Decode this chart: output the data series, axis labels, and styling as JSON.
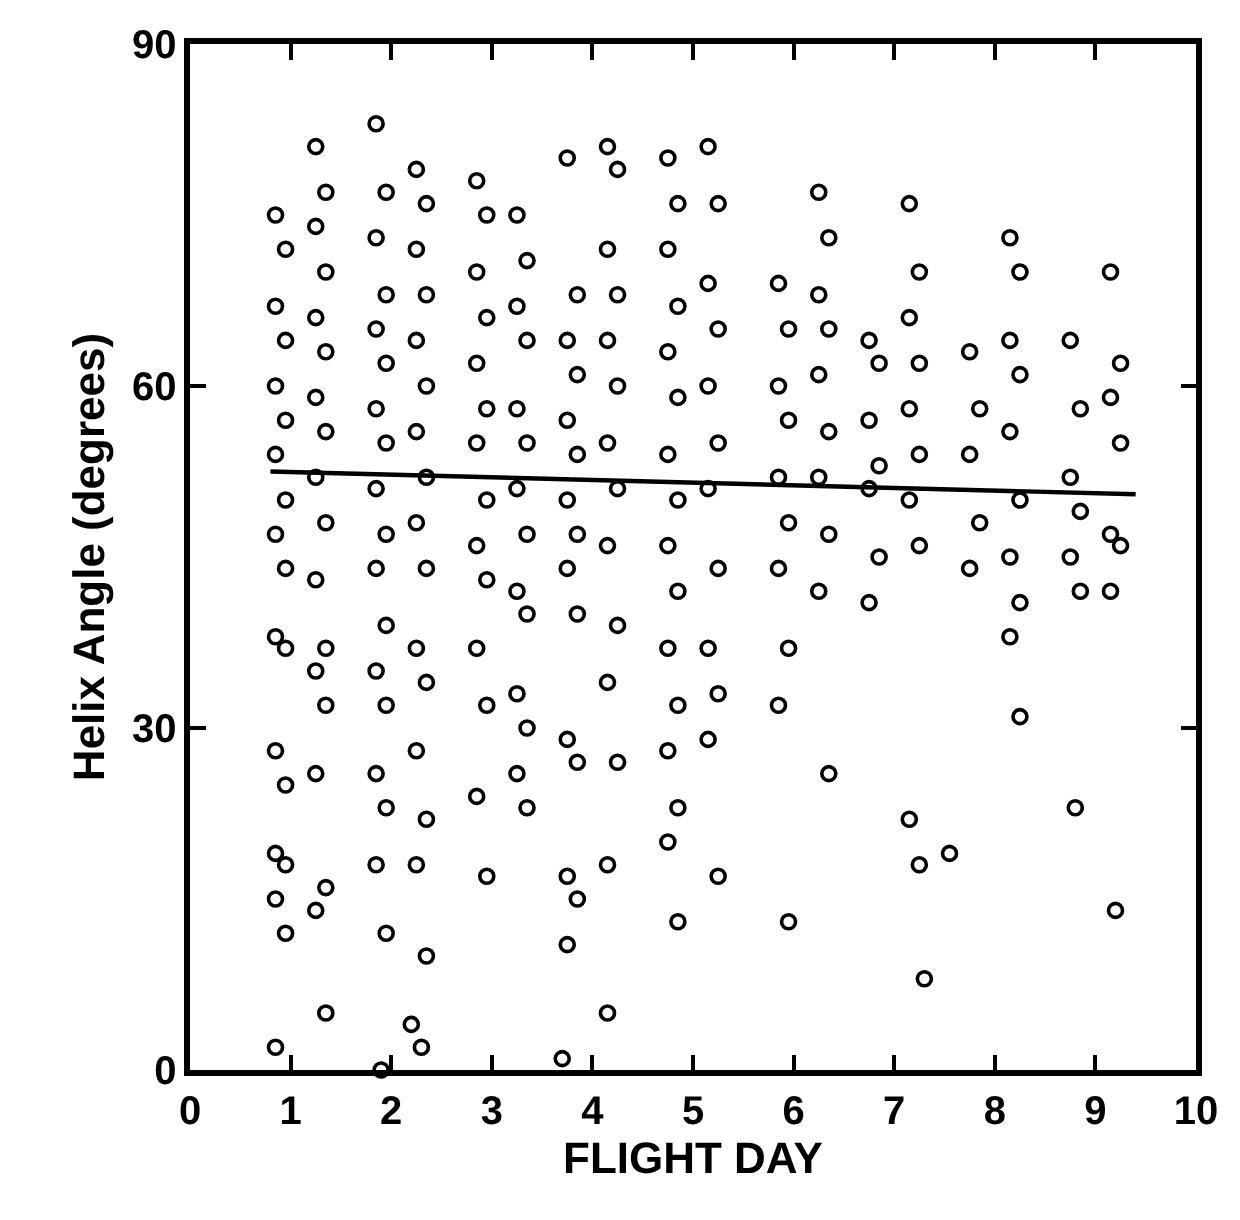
{
  "chart_data": {
    "type": "scatter",
    "xlabel": "FLIGHT DAY",
    "ylabel": "Helix Angle (degrees)",
    "xlim": [
      0,
      10
    ],
    "xticks": [
      0,
      1,
      2,
      3,
      4,
      5,
      6,
      7,
      8,
      9,
      10
    ],
    "ylim": [
      0,
      90
    ],
    "yticks": [
      0,
      30,
      60,
      90
    ],
    "series": [
      {
        "marker": "circle",
        "color": "#000000",
        "x": [
          0.85,
          0.95,
          0.85,
          0.95,
          0.85,
          0.95,
          0.85,
          0.95,
          0.85,
          0.95,
          0.85,
          0.95,
          0.85,
          0.95,
          0.85,
          0.95,
          0.85,
          0.95,
          0.85,
          1.25,
          1.35,
          1.25,
          1.35,
          1.25,
          1.35,
          1.25,
          1.35,
          1.25,
          1.35,
          1.25,
          1.35,
          1.25,
          1.35,
          1.25,
          1.35,
          1.25,
          1.35,
          1.85,
          1.95,
          1.85,
          1.95,
          1.85,
          1.95,
          1.85,
          1.95,
          1.85,
          1.95,
          1.85,
          1.95,
          1.85,
          1.95,
          1.85,
          1.95,
          1.85,
          1.95,
          1.9,
          2.25,
          2.35,
          2.25,
          2.35,
          2.25,
          2.35,
          2.25,
          2.35,
          2.25,
          2.35,
          2.25,
          2.35,
          2.25,
          2.35,
          2.25,
          2.35,
          2.2,
          2.3,
          2.85,
          2.95,
          2.85,
          2.95,
          2.85,
          2.95,
          2.85,
          2.95,
          2.85,
          2.95,
          2.85,
          2.95,
          2.85,
          2.95,
          3.25,
          3.35,
          3.25,
          3.35,
          3.25,
          3.35,
          3.25,
          3.35,
          3.25,
          3.35,
          3.25,
          3.35,
          3.25,
          3.35,
          3.75,
          3.85,
          3.75,
          3.85,
          3.75,
          3.85,
          3.75,
          3.85,
          3.75,
          3.85,
          3.75,
          3.85,
          3.75,
          3.85,
          3.75,
          3.7,
          4.15,
          4.25,
          4.15,
          4.25,
          4.15,
          4.25,
          4.15,
          4.25,
          4.15,
          4.25,
          4.15,
          4.25,
          4.15,
          4.15,
          4.75,
          4.85,
          4.75,
          4.85,
          4.75,
          4.85,
          4.75,
          4.85,
          4.75,
          4.85,
          4.75,
          4.85,
          4.75,
          4.85,
          4.75,
          4.85,
          5.15,
          5.25,
          5.15,
          5.25,
          5.15,
          5.25,
          5.15,
          5.25,
          5.15,
          5.25,
          5.15,
          5.25,
          5.85,
          5.95,
          5.85,
          5.95,
          5.85,
          5.95,
          5.85,
          5.95,
          5.85,
          5.95,
          6.25,
          6.35,
          6.25,
          6.35,
          6.25,
          6.35,
          6.25,
          6.35,
          6.25,
          6.35,
          6.75,
          6.85,
          6.75,
          6.85,
          6.75,
          6.85,
          6.75,
          7.15,
          7.25,
          7.15,
          7.25,
          7.15,
          7.25,
          7.15,
          7.25,
          7.15,
          7.25,
          7.3,
          7.75,
          7.85,
          7.75,
          7.85,
          7.75,
          7.55,
          8.15,
          8.25,
          8.15,
          8.25,
          8.15,
          8.25,
          8.15,
          8.25,
          8.15,
          8.25,
          8.75,
          8.85,
          8.75,
          8.85,
          8.75,
          8.85,
          8.8,
          9.15,
          9.25,
          9.15,
          9.25,
          9.15,
          9.25,
          9.15,
          9.2
        ],
        "values": [
          75,
          72,
          67,
          64,
          60,
          57,
          54,
          50,
          47,
          44,
          38,
          37,
          28,
          25,
          19,
          18,
          15,
          12,
          2,
          81,
          77,
          74,
          70,
          66,
          63,
          59,
          56,
          52,
          48,
          43,
          37,
          35,
          32,
          26,
          16,
          14,
          5,
          83,
          77,
          73,
          68,
          65,
          62,
          58,
          55,
          51,
          47,
          44,
          39,
          35,
          32,
          26,
          23,
          18,
          12,
          0,
          79,
          76,
          72,
          68,
          64,
          60,
          56,
          52,
          48,
          44,
          37,
          34,
          28,
          22,
          18,
          10,
          4,
          2,
          78,
          75,
          70,
          66,
          62,
          58,
          55,
          50,
          46,
          43,
          37,
          32,
          24,
          17,
          75,
          71,
          67,
          64,
          58,
          55,
          51,
          47,
          42,
          40,
          33,
          30,
          26,
          23,
          80,
          68,
          64,
          61,
          57,
          54,
          50,
          47,
          44,
          40,
          29,
          27,
          17,
          15,
          11,
          1,
          81,
          79,
          72,
          68,
          64,
          60,
          55,
          51,
          46,
          39,
          34,
          27,
          18,
          5,
          80,
          76,
          72,
          67,
          63,
          59,
          54,
          50,
          46,
          42,
          37,
          32,
          28,
          23,
          20,
          13,
          81,
          76,
          69,
          65,
          60,
          55,
          51,
          44,
          37,
          33,
          29,
          17,
          69,
          65,
          60,
          57,
          52,
          48,
          44,
          37,
          32,
          13,
          77,
          73,
          68,
          65,
          61,
          56,
          52,
          47,
          42,
          26,
          64,
          62,
          57,
          53,
          51,
          45,
          41,
          76,
          70,
          66,
          62,
          58,
          54,
          50,
          46,
          22,
          18,
          8,
          63,
          58,
          54,
          48,
          44,
          19,
          73,
          70,
          64,
          61,
          56,
          50,
          45,
          41,
          38,
          31,
          64,
          58,
          52,
          49,
          45,
          42,
          23,
          70,
          62,
          59,
          55,
          47,
          46,
          42,
          14
        ]
      },
      {
        "type": "line",
        "marker": "none",
        "line_style": "solid",
        "color": "#000000",
        "x": [
          0.8,
          9.4
        ],
        "values": [
          52.5,
          50.5
        ]
      }
    ]
  }
}
